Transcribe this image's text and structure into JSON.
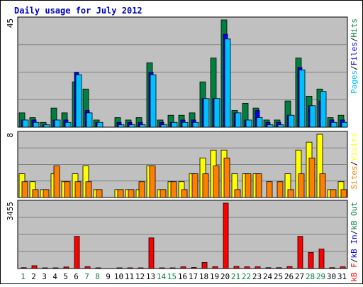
{
  "chart_data": {
    "type": "bar",
    "title": "Daily usage for July 2012",
    "categories": [
      "1",
      "2",
      "3",
      "4",
      "5",
      "6",
      "7",
      "8",
      "9",
      "10",
      "11",
      "12",
      "13",
      "14",
      "15",
      "16",
      "17",
      "18",
      "19",
      "20",
      "21",
      "22",
      "23",
      "24",
      "25",
      "26",
      "27",
      "28",
      "29",
      "30",
      "31"
    ],
    "weekend_days": [
      "1",
      "7",
      "8",
      "14",
      "15",
      "21",
      "22",
      "28",
      "29"
    ],
    "colors": {
      "background": "#c0c0c0",
      "title": "#0000c0",
      "hits": "#008040",
      "files": "#0000ff",
      "pages": "#00c0ff",
      "visits": "#ffff00",
      "sites": "#ff8000",
      "kb_f": "#ff0000",
      "kb_in": "#0000ff",
      "kb_out": "#008040",
      "weekday_label": "#000000",
      "weekend_label": "#008040"
    },
    "panels": [
      {
        "id": "hits-files-pages",
        "max_label": "45",
        "ylim": [
          0,
          45
        ],
        "legend": [
          {
            "name": "Pages",
            "color_key": "pages"
          },
          {
            "name": "/",
            "color_key": "weekday_label"
          },
          {
            "name": "Files",
            "color_key": "files"
          },
          {
            "name": "/",
            "color_key": "weekday_label"
          },
          {
            "name": "Hits",
            "color_key": "hits"
          }
        ],
        "series": [
          {
            "name": "Hits",
            "color_key": "hits",
            "values": [
              6,
              4,
              2,
              8,
              6,
              19,
              16,
              3,
              0,
              4,
              3,
              4,
              27,
              3,
              5,
              5,
              6,
              19,
              29,
              45,
              7,
              10,
              8,
              3,
              3,
              11,
              29,
              13,
              16,
              4,
              5
            ]
          },
          {
            "name": "Files",
            "color_key": "files",
            "values": [
              3,
              3,
              1,
              3,
              3,
              23,
              7,
              2,
              0,
              2,
              2,
              2,
              23,
              2,
              2,
              3,
              3,
              12,
              12,
              39,
              6,
              3,
              7,
              2,
              2,
              5,
              25,
              9,
              11,
              3,
              3
            ]
          },
          {
            "name": "Pages",
            "color_key": "pages",
            "values": [
              3,
              2,
              1,
              3,
              2,
              22,
              6,
              2,
              0,
              1,
              1,
              1,
              22,
              1,
              2,
              2,
              2,
              12,
              12,
              37,
              6,
              3,
              4,
              1,
              1,
              5,
              24,
              9,
              15,
              2,
              2
            ]
          }
        ]
      },
      {
        "id": "visits-sites",
        "max_label": "8",
        "ylim": [
          0,
          8
        ],
        "legend": [
          {
            "name": "Sites",
            "color_key": "sites"
          },
          {
            "name": "/",
            "color_key": "weekday_label"
          },
          {
            "name": "Visits",
            "color_key": "visits"
          }
        ],
        "series": [
          {
            "name": "Visits",
            "color_key": "visits",
            "values": [
              3,
              2,
              1,
              3,
              2,
              3,
              4,
              1,
              0,
              1,
              1,
              1,
              4,
              1,
              2,
              2,
              3,
              5,
              6,
              6,
              3,
              3,
              3,
              0,
              0,
              3,
              6,
              7,
              8,
              1,
              2
            ]
          },
          {
            "name": "Sites",
            "color_key": "sites",
            "values": [
              2,
              1,
              1,
              4,
              2,
              2,
              2,
              1,
              0,
              1,
              1,
              2,
              4,
              1,
              2,
              1,
              3,
              3,
              4,
              5,
              1,
              3,
              3,
              2,
              2,
              1,
              3,
              5,
              3,
              1,
              1
            ]
          }
        ]
      },
      {
        "id": "kbytes",
        "max_label": "3455",
        "ylim": [
          0,
          3455
        ],
        "legend": [
          {
            "name": "kB F",
            "color_key": "kb_f"
          },
          {
            "name": "/",
            "color_key": "weekday_label"
          },
          {
            "name": "kB In",
            "color_key": "kb_in"
          },
          {
            "name": "/",
            "color_key": "weekday_label"
          },
          {
            "name": "kB Out",
            "color_key": "kb_out"
          }
        ],
        "series": [
          {
            "name": "kB F",
            "color_key": "kb_f",
            "values": [
              45,
              150,
              35,
              35,
              80,
              1700,
              95,
              35,
              0,
              35,
              35,
              35,
              1620,
              35,
              35,
              90,
              55,
              320,
              95,
              3455,
              110,
              90,
              90,
              45,
              45,
              105,
              1700,
              850,
              1030,
              45,
              90
            ]
          }
        ]
      }
    ]
  }
}
